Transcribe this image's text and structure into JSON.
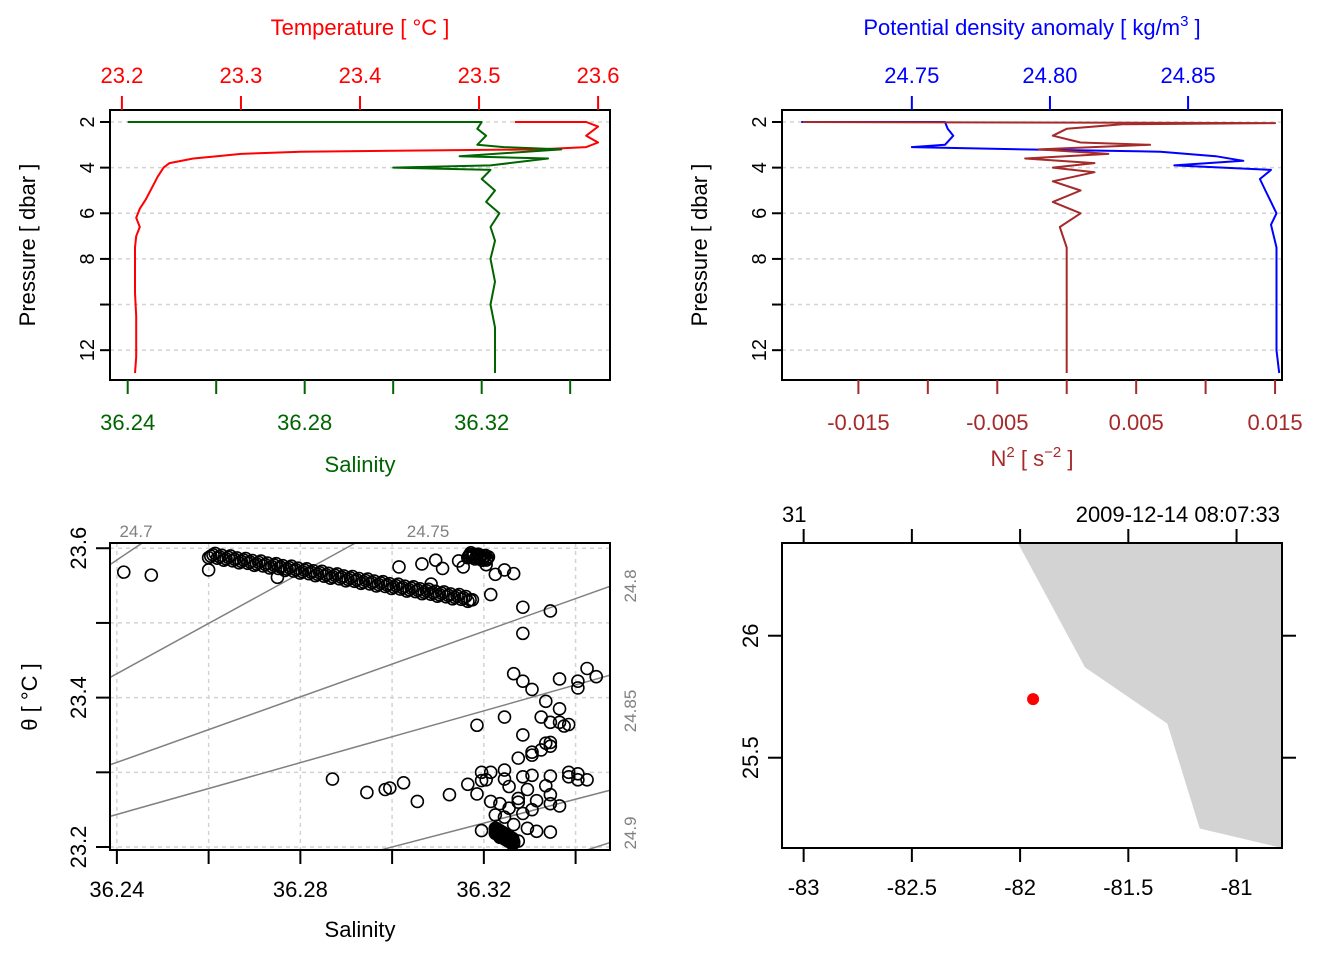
{
  "colors": {
    "temperature": "#ff0000",
    "salinity": "#006400",
    "density": "#0000ff",
    "n2": "#a52a2a",
    "isopycnal": "#808080",
    "grid": "#d3d3d3",
    "land": "#d3d3d3",
    "station": "#ff0000",
    "axis": "#000000"
  },
  "chart_data": [
    {
      "id": "profile-ts",
      "type": "line",
      "top_title": "Temperature [ °C ]",
      "bottom_title": "Salinity",
      "ylabel": "Pressure [ dbar ]",
      "y_ticks": [
        "2",
        "4",
        "6",
        "8",
        "",
        "12"
      ],
      "y_tick_values": [
        2,
        4,
        6,
        8,
        10,
        12
      ],
      "ylim": [
        13.0,
        2.0
      ],
      "top_axis": {
        "label": "Temperature",
        "ticks": [
          "23.2",
          "23.3",
          "23.4",
          "23.5",
          "23.6"
        ],
        "tick_values": [
          23.2,
          23.3,
          23.4,
          23.5,
          23.6
        ],
        "lim": [
          23.19,
          23.61
        ]
      },
      "bottom_axis": {
        "label": "Salinity",
        "ticks": [
          "36.24",
          "",
          "36.28",
          "",
          "36.32",
          ""
        ],
        "tick_values": [
          36.24,
          36.26,
          36.28,
          36.3,
          36.32,
          36.34
        ],
        "lim": [
          36.236,
          36.349
        ]
      },
      "grid": true,
      "series": [
        {
          "name": "Temperature",
          "axis": "top",
          "points": [
            [
              23.53,
              2.0
            ],
            [
              23.59,
              2.0
            ],
            [
              23.6,
              2.2
            ],
            [
              23.59,
              2.6
            ],
            [
              23.6,
              2.9
            ],
            [
              23.59,
              3.1
            ],
            [
              23.55,
              3.2
            ],
            [
              23.35,
              3.3
            ],
            [
              23.3,
              3.4
            ],
            [
              23.28,
              3.5
            ],
            [
              23.26,
              3.6
            ],
            [
              23.24,
              3.8
            ],
            [
              23.235,
              4.0
            ],
            [
              23.23,
              4.4
            ],
            [
              23.225,
              4.9
            ],
            [
              23.22,
              5.4
            ],
            [
              23.215,
              5.8
            ],
            [
              23.212,
              6.2
            ],
            [
              23.215,
              6.6
            ],
            [
              23.212,
              7.0
            ],
            [
              23.211,
              7.5
            ],
            [
              23.211,
              8.5
            ],
            [
              23.211,
              9.5
            ],
            [
              23.212,
              10.5
            ],
            [
              23.212,
              11.5
            ],
            [
              23.212,
              12.3
            ],
            [
              23.211,
              13.0
            ]
          ]
        },
        {
          "name": "Salinity",
          "axis": "bottom",
          "points": [
            [
              36.24,
              2.0
            ],
            [
              36.32,
              2.0
            ],
            [
              36.319,
              2.3
            ],
            [
              36.321,
              2.6
            ],
            [
              36.319,
              3.0
            ],
            [
              36.325,
              3.1
            ],
            [
              36.338,
              3.2
            ],
            [
              36.315,
              3.5
            ],
            [
              36.335,
              3.6
            ],
            [
              36.322,
              3.9
            ],
            [
              36.3,
              4.0
            ],
            [
              36.322,
              4.1
            ],
            [
              36.32,
              4.5
            ],
            [
              36.323,
              5.0
            ],
            [
              36.321,
              5.5
            ],
            [
              36.324,
              6.0
            ],
            [
              36.322,
              6.6
            ],
            [
              36.323,
              7.2
            ],
            [
              36.322,
              8.0
            ],
            [
              36.323,
              9.0
            ],
            [
              36.322,
              10.0
            ],
            [
              36.323,
              11.0
            ],
            [
              36.323,
              12.0
            ],
            [
              36.323,
              13.0
            ]
          ]
        }
      ]
    },
    {
      "id": "profile-density-n2",
      "type": "line",
      "top_title": "Potential density anomaly [ kg/m³ ]",
      "bottom_title": "N² [ s⁻² ]",
      "ylabel": "Pressure [ dbar ]",
      "y_ticks": [
        "2",
        "4",
        "6",
        "8",
        "",
        "12"
      ],
      "y_tick_values": [
        2,
        4,
        6,
        8,
        10,
        12
      ],
      "ylim": [
        13.0,
        2.0
      ],
      "top_axis": {
        "label": "Potential density anomaly",
        "ticks": [
          "24.75",
          "24.80",
          "24.85"
        ],
        "tick_values": [
          24.75,
          24.8,
          24.85
        ],
        "lim": [
          24.703,
          24.884
        ]
      },
      "bottom_axis": {
        "label": "N2",
        "ticks": [
          "-0.015",
          "",
          "-0.005",
          "",
          "0.005",
          "",
          "0.015"
        ],
        "tick_values": [
          -0.015,
          -0.01,
          -0.005,
          0.0,
          0.005,
          0.01,
          0.015
        ],
        "lim": [
          -0.0205,
          0.0155
        ]
      },
      "grid": true,
      "series": [
        {
          "name": "Potential density anomaly",
          "axis": "top",
          "points": [
            [
              24.71,
              2.0
            ],
            [
              24.762,
              2.0
            ],
            [
              24.763,
              2.3
            ],
            [
              24.765,
              2.6
            ],
            [
              24.762,
              3.0
            ],
            [
              24.75,
              3.1
            ],
            [
              24.79,
              3.2
            ],
            [
              24.84,
              3.3
            ],
            [
              24.86,
              3.5
            ],
            [
              24.87,
              3.7
            ],
            [
              24.845,
              3.9
            ],
            [
              24.88,
              4.1
            ],
            [
              24.876,
              4.5
            ],
            [
              24.878,
              5.0
            ],
            [
              24.88,
              5.5
            ],
            [
              24.882,
              6.0
            ],
            [
              24.88,
              6.5
            ],
            [
              24.882,
              7.5
            ],
            [
              24.882,
              9.0
            ],
            [
              24.882,
              10.5
            ],
            [
              24.882,
              12.0
            ],
            [
              24.883,
              13.0
            ]
          ]
        },
        {
          "name": "N2",
          "axis": "bottom",
          "points": [
            [
              -0.019,
              2.0
            ],
            [
              0.015,
              2.05
            ],
            [
              0.004,
              2.1
            ],
            [
              0.0,
              2.3
            ],
            [
              -0.001,
              2.6
            ],
            [
              0.001,
              2.9
            ],
            [
              0.006,
              3.0
            ],
            [
              -0.002,
              3.2
            ],
            [
              0.003,
              3.4
            ],
            [
              -0.003,
              3.6
            ],
            [
              0.002,
              3.8
            ],
            [
              -0.001,
              4.0
            ],
            [
              0.002,
              4.2
            ],
            [
              -0.001,
              4.6
            ],
            [
              0.001,
              5.0
            ],
            [
              -0.001,
              5.5
            ],
            [
              0.001,
              6.0
            ],
            [
              -0.0005,
              6.6
            ],
            [
              0.0,
              7.5
            ],
            [
              0.0,
              9.0
            ],
            [
              0.0,
              11.0
            ],
            [
              0.0,
              12.5
            ],
            [
              0.0,
              13.0
            ]
          ]
        }
      ]
    },
    {
      "id": "ts-diagram",
      "type": "scatter",
      "title": "",
      "xlabel": "Salinity",
      "ylabel": "θ [ °C ]",
      "xlim": [
        36.2385,
        36.3475
      ],
      "ylim": [
        23.196,
        23.607
      ],
      "x_ticks": [
        "36.24",
        "",
        "36.28",
        "",
        "36.32",
        ""
      ],
      "x_tick_values": [
        36.24,
        36.26,
        36.28,
        36.3,
        36.32,
        36.34
      ],
      "y_ticks": [
        "23.2",
        "",
        "23.4",
        "",
        "23.6"
      ],
      "y_tick_values": [
        23.2,
        23.3,
        23.4,
        23.5,
        23.6
      ],
      "grid": true,
      "isopycnal_labels": [
        "24.7",
        "24.75",
        "24.8",
        "24.85",
        "24.9"
      ],
      "isopycnal_values": [
        24.7,
        24.75,
        24.8,
        24.85,
        24.9
      ],
      "isopycnal_label_positions": [
        "top",
        "top",
        "right",
        "right",
        "right"
      ],
      "isopycnal_segments": [
        [
          [
            36.2385,
            23.578
          ],
          [
            36.2455,
            23.607
          ]
        ],
        [
          [
            36.2385,
            23.427
          ],
          [
            36.292,
            23.607
          ]
        ],
        [
          [
            36.2385,
            23.31
          ],
          [
            36.3475,
            23.549
          ]
        ],
        [
          [
            36.2385,
            23.241
          ],
          [
            36.3475,
            23.43
          ]
        ],
        [
          [
            36.2975,
            23.196
          ],
          [
            36.3475,
            23.276
          ]
        ],
        [
          [
            36.3425,
            23.196
          ],
          [
            36.3475,
            23.206
          ]
        ]
      ],
      "points": [
        [
          36.2415,
          23.568
        ],
        [
          36.2475,
          23.564
        ],
        [
          36.26,
          23.571
        ],
        [
          36.275,
          23.561
        ],
        [
          36.3015,
          23.575
        ],
        [
          36.3065,
          23.579
        ],
        [
          36.3095,
          23.584
        ],
        [
          36.311,
          23.573
        ],
        [
          36.3145,
          23.583
        ],
        [
          36.3155,
          23.575
        ],
        [
          36.3175,
          23.59
        ],
        [
          36.3205,
          23.578
        ],
        [
          36.3225,
          23.565
        ],
        [
          36.3245,
          23.571
        ],
        [
          36.3265,
          23.566
        ],
        [
          36.3085,
          23.552
        ],
        [
          36.3175,
          23.531
        ],
        [
          36.3215,
          23.538
        ],
        [
          36.3285,
          23.521
        ],
        [
          36.3345,
          23.516
        ],
        [
          36.3285,
          23.486
        ],
        [
          36.3265,
          23.432
        ],
        [
          36.3285,
          23.422
        ],
        [
          36.3305,
          23.411
        ],
        [
          36.3365,
          23.425
        ],
        [
          36.3405,
          23.422
        ],
        [
          36.3425,
          23.439
        ],
        [
          36.3405,
          23.413
        ],
        [
          36.3445,
          23.428
        ],
        [
          36.3335,
          23.395
        ],
        [
          36.3365,
          23.385
        ],
        [
          36.3325,
          23.374
        ],
        [
          36.3345,
          23.367
        ],
        [
          36.3365,
          23.367
        ],
        [
          36.3245,
          23.374
        ],
        [
          36.3375,
          23.362
        ],
        [
          36.3385,
          23.364
        ],
        [
          36.3285,
          23.35
        ],
        [
          36.3305,
          23.327
        ],
        [
          36.3335,
          23.339
        ],
        [
          36.3345,
          23.335
        ],
        [
          36.3185,
          23.363
        ],
        [
          36.3025,
          23.286
        ],
        [
          36.2985,
          23.277
        ],
        [
          36.2945,
          23.273
        ],
        [
          36.2995,
          23.279
        ],
        [
          36.3165,
          23.284
        ],
        [
          36.3205,
          23.29
        ],
        [
          36.3245,
          23.291
        ],
        [
          36.3285,
          23.294
        ],
        [
          36.3305,
          23.296
        ],
        [
          36.3345,
          23.295
        ],
        [
          36.3385,
          23.294
        ],
        [
          36.3405,
          23.29
        ],
        [
          36.3425,
          23.29
        ],
        [
          36.3255,
          23.281
        ],
        [
          36.3295,
          23.277
        ],
        [
          36.3335,
          23.282
        ],
        [
          36.3345,
          23.27
        ],
        [
          36.3185,
          23.271
        ],
        [
          36.3215,
          23.261
        ],
        [
          36.3235,
          23.258
        ],
        [
          36.3255,
          23.252
        ],
        [
          36.3275,
          23.26
        ],
        [
          36.3315,
          23.262
        ],
        [
          36.3345,
          23.258
        ],
        [
          36.3365,
          23.255
        ],
        [
          36.3225,
          23.243
        ],
        [
          36.3245,
          23.24
        ],
        [
          36.3285,
          23.245
        ],
        [
          36.3305,
          23.25
        ],
        [
          36.3265,
          23.23
        ],
        [
          36.3295,
          23.225
        ],
        [
          36.3315,
          23.221
        ],
        [
          36.3345,
          23.22
        ],
        [
          36.3245,
          23.217
        ],
        [
          36.3255,
          23.21
        ],
        [
          36.3265,
          23.205
        ],
        [
          36.3275,
          23.208
        ],
        [
          36.3235,
          23.213
        ],
        [
          36.3225,
          23.225
        ],
        [
          36.3195,
          23.222
        ],
        [
          36.3275,
          23.265
        ],
        [
          36.3195,
          23.289
        ],
        [
          36.3125,
          23.27
        ],
        [
          36.3055,
          23.261
        ],
        [
          36.287,
          23.291
        ],
        [
          36.3215,
          23.3
        ],
        [
          36.3245,
          23.303
        ],
        [
          36.3195,
          23.3
        ],
        [
          36.3385,
          23.3
        ],
        [
          36.3405,
          23.298
        ],
        [
          36.3275,
          23.319
        ],
        [
          36.3305,
          23.323
        ],
        [
          36.3325,
          23.33
        ],
        [
          36.3345,
          23.34
        ]
      ],
      "dense_bands": [
        {
          "from": [
            36.26,
            23.591
          ],
          "to": [
            36.317,
            23.532
          ],
          "samples": 120
        },
        {
          "from": [
            36.3165,
            23.591
          ],
          "to": [
            36.321,
            23.586
          ],
          "samples": 20
        },
        {
          "from": [
            36.3225,
            23.222
          ],
          "to": [
            36.3265,
            23.207
          ],
          "samples": 40
        }
      ]
    },
    {
      "id": "station-map",
      "type": "map",
      "top_left_label": "31",
      "top_right_label": "2009-12-14 08:07:33",
      "xlim": [
        -83.1,
        -80.79
      ],
      "ylim": [
        25.13,
        26.38
      ],
      "x_ticks": [
        "-83",
        "-82.5",
        "-82",
        "-81.5",
        "-81"
      ],
      "x_tick_values": [
        -83.0,
        -82.5,
        -82.0,
        -81.5,
        -81.0
      ],
      "y_ticks": [
        "26",
        "25.5"
      ],
      "y_tick_values": [
        26.0,
        25.5
      ],
      "station": {
        "lon": -81.94,
        "lat": 25.74
      },
      "land_polygon": [
        [
          -82.01,
          26.38
        ],
        [
          -81.7,
          25.87
        ],
        [
          -81.32,
          25.64
        ],
        [
          -81.17,
          25.21
        ],
        [
          -80.79,
          25.13
        ],
        [
          -80.79,
          26.38
        ]
      ]
    }
  ]
}
